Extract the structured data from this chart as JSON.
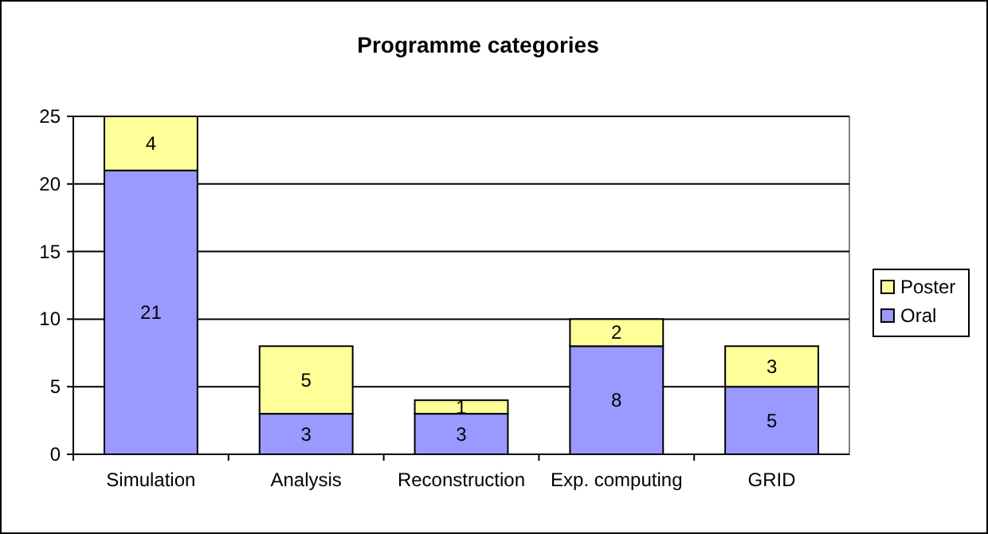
{
  "chart_data": {
    "type": "bar",
    "title": "Programme categories",
    "stacked": true,
    "data_labels": true,
    "grid": "y",
    "legend": "right",
    "categories": [
      "Simulation",
      "Analysis",
      "Reconstruction",
      "Exp. computing",
      "GRID"
    ],
    "series": [
      {
        "name": "Oral",
        "color": "#9999ff",
        "values": [
          21,
          3,
          3,
          8,
          5
        ]
      },
      {
        "name": "Poster",
        "color": "#ffff99",
        "values": [
          4,
          5,
          1,
          2,
          3
        ]
      }
    ],
    "ylim": [
      0,
      25
    ],
    "yticks": [
      0,
      5,
      10,
      15,
      20,
      25
    ]
  }
}
